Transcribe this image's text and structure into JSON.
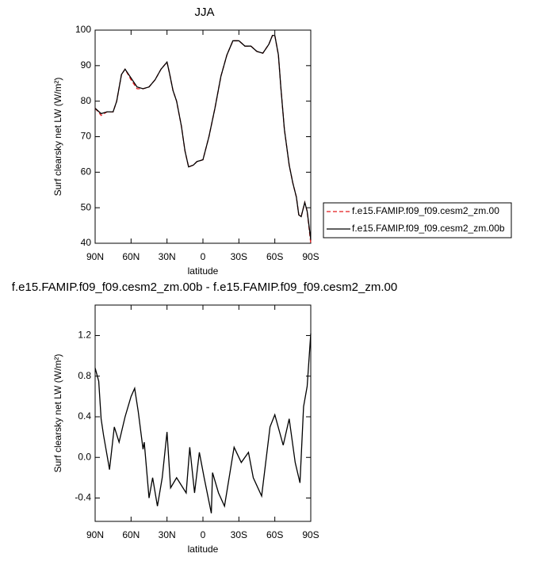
{
  "chart_data": [
    {
      "type": "line",
      "title": "JJA",
      "x_label": "latitude",
      "y_label": "Surf clearsky net LW (W/m²)",
      "x": [
        90,
        85,
        80,
        75,
        72,
        68,
        65,
        60,
        55,
        50,
        45,
        40,
        35,
        30,
        28,
        25,
        22,
        18,
        15,
        12,
        8,
        5,
        0,
        -5,
        -10,
        -15,
        -20,
        -25,
        -30,
        -35,
        -40,
        -45,
        -50,
        -55,
        -58,
        -60,
        -63,
        -65,
        -68,
        -72,
        -75,
        -78,
        -80,
        -82,
        -85,
        -87,
        -90
      ],
      "series": [
        {
          "name": "f.e15.FAMIP.f09_f09.cesm2_zm.00",
          "color": "#e41a1c",
          "line_style": "dashed",
          "values": [
            78,
            76,
            77,
            77,
            80,
            87.5,
            89,
            86,
            83.5,
            83.5,
            84,
            86,
            89,
            91,
            88,
            83,
            80,
            73,
            66,
            61.5,
            62,
            63,
            63.5,
            70,
            78,
            87,
            93,
            97,
            97,
            95.5,
            95.5,
            94,
            93.5,
            96,
            98.5,
            98.5,
            93,
            84,
            72,
            62,
            57,
            53,
            48,
            47.5,
            51.5,
            49,
            40
          ]
        },
        {
          "name": "f.e15.FAMIP.f09_f09.cesm2_zm.00b",
          "color": "#000000",
          "line_style": "solid",
          "values": [
            78,
            76.5,
            77,
            77,
            80,
            87.5,
            89,
            86.5,
            84,
            83.5,
            84,
            86,
            89,
            91,
            88,
            83,
            80,
            73,
            66,
            61.5,
            62,
            63,
            63.5,
            70,
            78,
            87,
            93,
            97,
            97,
            95.5,
            95.5,
            94,
            93.5,
            96,
            98.5,
            98.5,
            93,
            84,
            72,
            62,
            57,
            53,
            48,
            47.5,
            51.5,
            49,
            41
          ]
        }
      ],
      "xlim": [
        90,
        -90
      ],
      "xticks": [
        {
          "value": 90,
          "label": "90N"
        },
        {
          "value": 60,
          "label": "60N"
        },
        {
          "value": 30,
          "label": "30N"
        },
        0,
        {
          "value": -30,
          "label": "30S"
        },
        {
          "value": -60,
          "label": "60S"
        },
        {
          "value": -90,
          "label": "90S"
        }
      ],
      "ylim": [
        40,
        100
      ],
      "yticks": [
        40,
        50,
        60,
        70,
        80,
        90,
        100
      ],
      "legend": "right"
    },
    {
      "type": "line",
      "title": "f.e15.FAMIP.f09_f09.cesm2_zm.00b - f.e15.FAMIP.f09_f09.cesm2_zm.00",
      "x_label": "latitude",
      "y_label": "Surf clearsky net LW (W/m²)",
      "x": [
        90,
        87,
        85,
        83,
        79,
        78,
        74,
        70,
        65,
        60,
        57,
        54,
        50,
        49,
        45,
        42,
        38,
        34,
        30,
        27,
        22,
        14,
        11,
        7,
        3,
        -1,
        -7,
        -8,
        -13,
        -18,
        -26,
        -32,
        -38,
        -42,
        -49,
        -56,
        -60,
        -67,
        -72,
        -77,
        -81,
        -84,
        -87,
        -90
      ],
      "series": [
        {
          "color": "#000000",
          "line_style": "solid",
          "values": [
            0.88,
            0.75,
            0.38,
            0.22,
            -0.05,
            -0.12,
            0.3,
            0.15,
            0.4,
            0.6,
            0.68,
            0.45,
            0.08,
            0.15,
            -0.4,
            -0.2,
            -0.48,
            -0.2,
            0.25,
            -0.3,
            -0.2,
            -0.35,
            0.1,
            -0.35,
            0.05,
            -0.2,
            -0.55,
            -0.15,
            -0.35,
            -0.48,
            0.1,
            -0.05,
            0.05,
            -0.2,
            -0.38,
            0.3,
            0.42,
            0.12,
            0.38,
            -0.05,
            -0.25,
            0.5,
            0.7,
            1.22
          ]
        }
      ],
      "xlim": [
        90,
        -90
      ],
      "xticks": [
        {
          "value": 90,
          "label": "90N"
        },
        {
          "value": 60,
          "label": "60N"
        },
        {
          "value": 30,
          "label": "30N"
        },
        0,
        {
          "value": -30,
          "label": "30S"
        },
        {
          "value": -60,
          "label": "60S"
        },
        {
          "value": -90,
          "label": "90S"
        }
      ],
      "ylim": [
        -0.63,
        1.5
      ],
      "yticks": [
        -0.4,
        {
          "value": 0,
          "label": "0.0"
        },
        0.4,
        0.8,
        1.2
      ]
    }
  ]
}
